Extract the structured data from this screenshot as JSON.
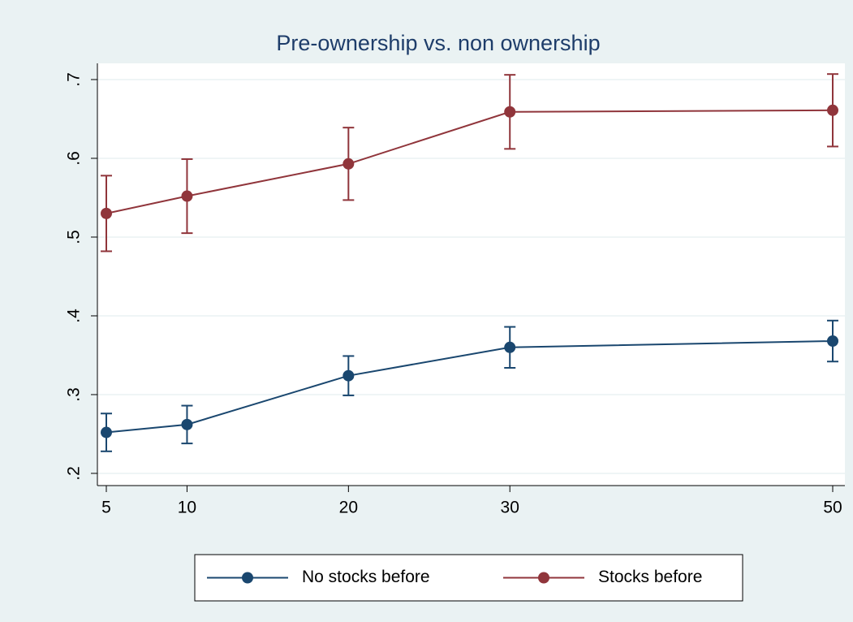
{
  "chart_data": {
    "type": "line",
    "title": "Pre-ownership vs. non ownership",
    "x": [
      5,
      10,
      20,
      30,
      50
    ],
    "series": [
      {
        "name": "No stocks before",
        "color": "#1a476f",
        "values": [
          0.252,
          0.262,
          0.324,
          0.36,
          0.368
        ],
        "errors": [
          0.024,
          0.024,
          0.025,
          0.026,
          0.026
        ]
      },
      {
        "name": "Stocks before",
        "color": "#90353b",
        "values": [
          0.53,
          0.552,
          0.593,
          0.659,
          0.661
        ],
        "errors": [
          0.048,
          0.047,
          0.046,
          0.047,
          0.046
        ]
      }
    ],
    "xlim": [
      4.447,
      50.754
    ],
    "xticks": [
      5,
      10,
      20,
      30,
      50
    ],
    "ylim": [
      0.1845,
      0.7206
    ],
    "yticks": [
      {
        "value": 0.2,
        "label": ".2"
      },
      {
        "value": 0.3,
        "label": ".3"
      },
      {
        "value": 0.4,
        "label": ".4"
      },
      {
        "value": 0.5,
        "label": ".5"
      },
      {
        "value": 0.6,
        "label": ".6"
      },
      {
        "value": 0.7,
        "label": ".7"
      }
    ],
    "grid": true,
    "legend": "bottom"
  }
}
